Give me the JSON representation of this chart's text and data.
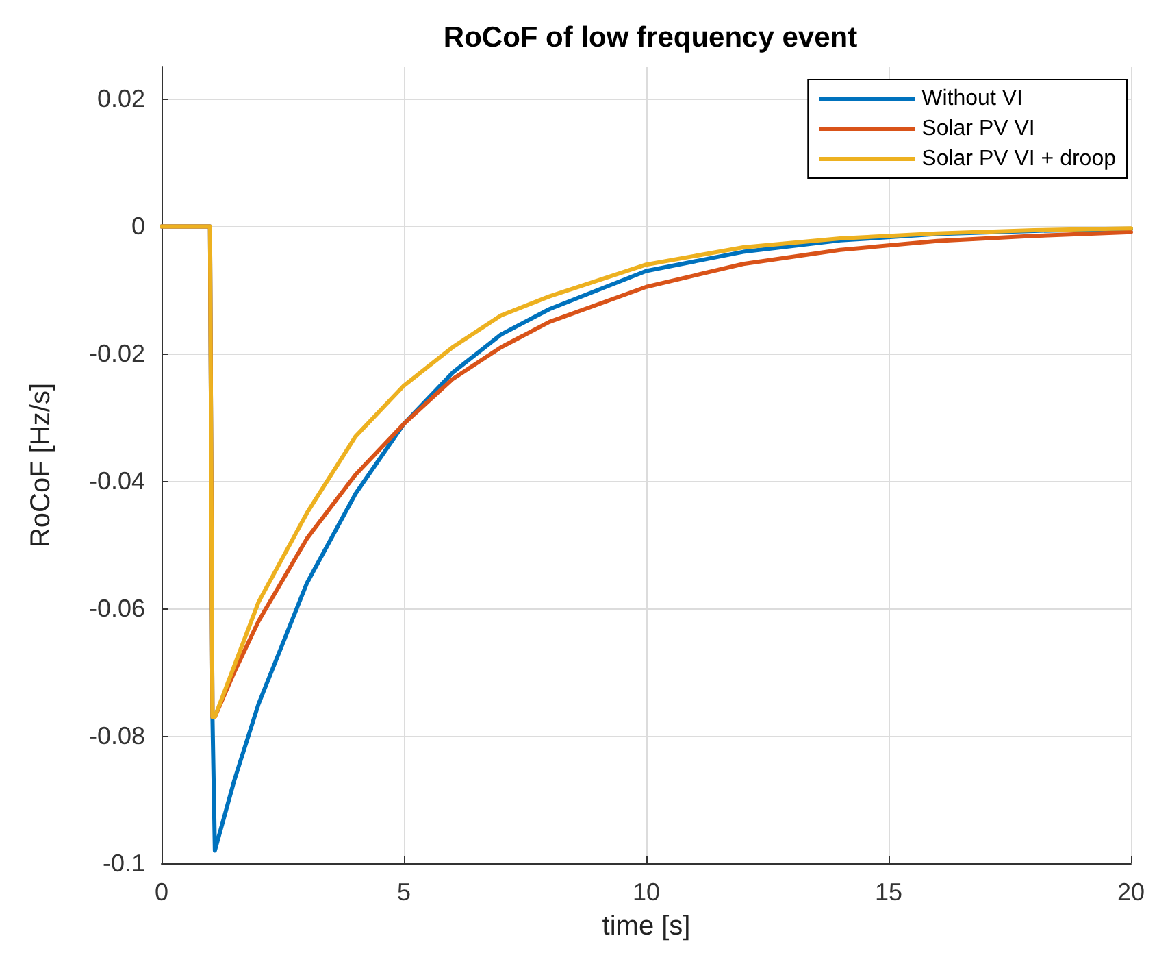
{
  "chart_data": {
    "type": "line",
    "title": "RoCoF of low frequency event",
    "xlabel": "time [s]",
    "ylabel": "RoCoF [Hz/s]",
    "x": [
      0,
      1,
      1.05,
      1.1,
      1.5,
      2,
      3,
      4,
      5,
      6,
      7,
      8,
      10,
      12,
      14,
      16,
      18,
      20
    ],
    "series": [
      {
        "name": "Without VI",
        "color": "#0072bd",
        "values": [
          0,
          0,
          -0.077,
          -0.098,
          -0.087,
          -0.075,
          -0.056,
          -0.042,
          -0.031,
          -0.023,
          -0.017,
          -0.013,
          -0.007,
          -0.004,
          -0.0022,
          -0.0012,
          -0.0007,
          -0.0004
        ]
      },
      {
        "name": "Solar PV VI",
        "color": "#d95319",
        "values": [
          0,
          0,
          -0.077,
          -0.077,
          -0.07,
          -0.062,
          -0.049,
          -0.039,
          -0.031,
          -0.024,
          -0.019,
          -0.015,
          -0.0095,
          -0.0059,
          -0.0037,
          -0.0023,
          -0.0015,
          -0.0009
        ]
      },
      {
        "name": "Solar PV VI + droop",
        "color": "#edb120",
        "values": [
          0,
          0,
          -0.077,
          -0.077,
          -0.069,
          -0.059,
          -0.045,
          -0.033,
          -0.025,
          -0.019,
          -0.014,
          -0.011,
          -0.006,
          -0.0033,
          -0.0019,
          -0.0011,
          -0.0006,
          -0.0003
        ]
      }
    ],
    "xlim": [
      0,
      20
    ],
    "xticks": [
      0,
      5,
      10,
      15,
      20
    ],
    "ylim": [
      -0.1,
      0.025
    ],
    "yticks": [
      -0.1,
      -0.08,
      -0.06,
      -0.04,
      -0.02,
      0,
      0.02
    ],
    "grid": true,
    "legend": "top right",
    "line_style": "solid",
    "marker": "none"
  }
}
